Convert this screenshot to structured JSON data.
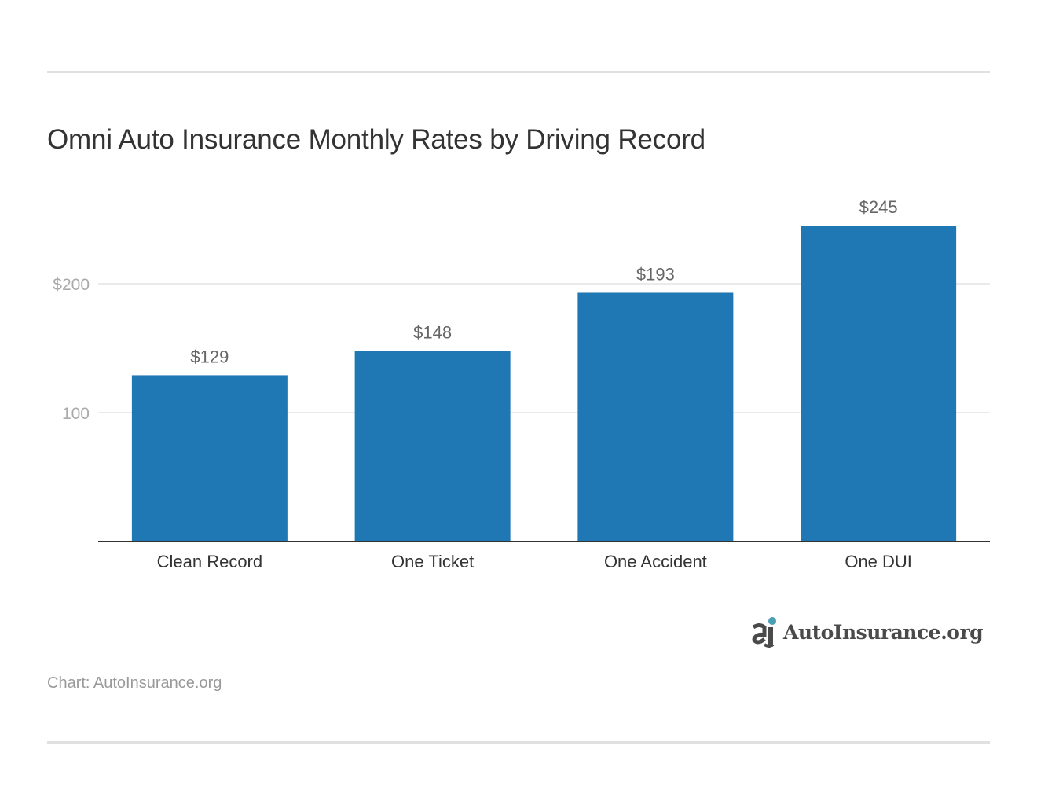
{
  "chart_data": {
    "type": "bar",
    "title": "Omni Auto Insurance Monthly Rates by Driving Record",
    "categories": [
      "Clean Record",
      "One Ticket",
      "One Accident",
      "One DUI"
    ],
    "values": [
      129,
      148,
      193,
      245
    ],
    "data_labels": [
      "$129",
      "$148",
      "$193",
      "$245"
    ],
    "yticks": [
      100,
      200
    ],
    "ytick_labels": [
      "100",
      "$200"
    ],
    "ylim": [
      0,
      260
    ],
    "xlabel": "",
    "ylabel": "",
    "grid": true,
    "bar_color": "#1f77b4"
  },
  "source": "Chart: AutoInsurance.org",
  "logo": {
    "text": "AutoInsurance.org",
    "accent_color": "#4a9fb5"
  }
}
